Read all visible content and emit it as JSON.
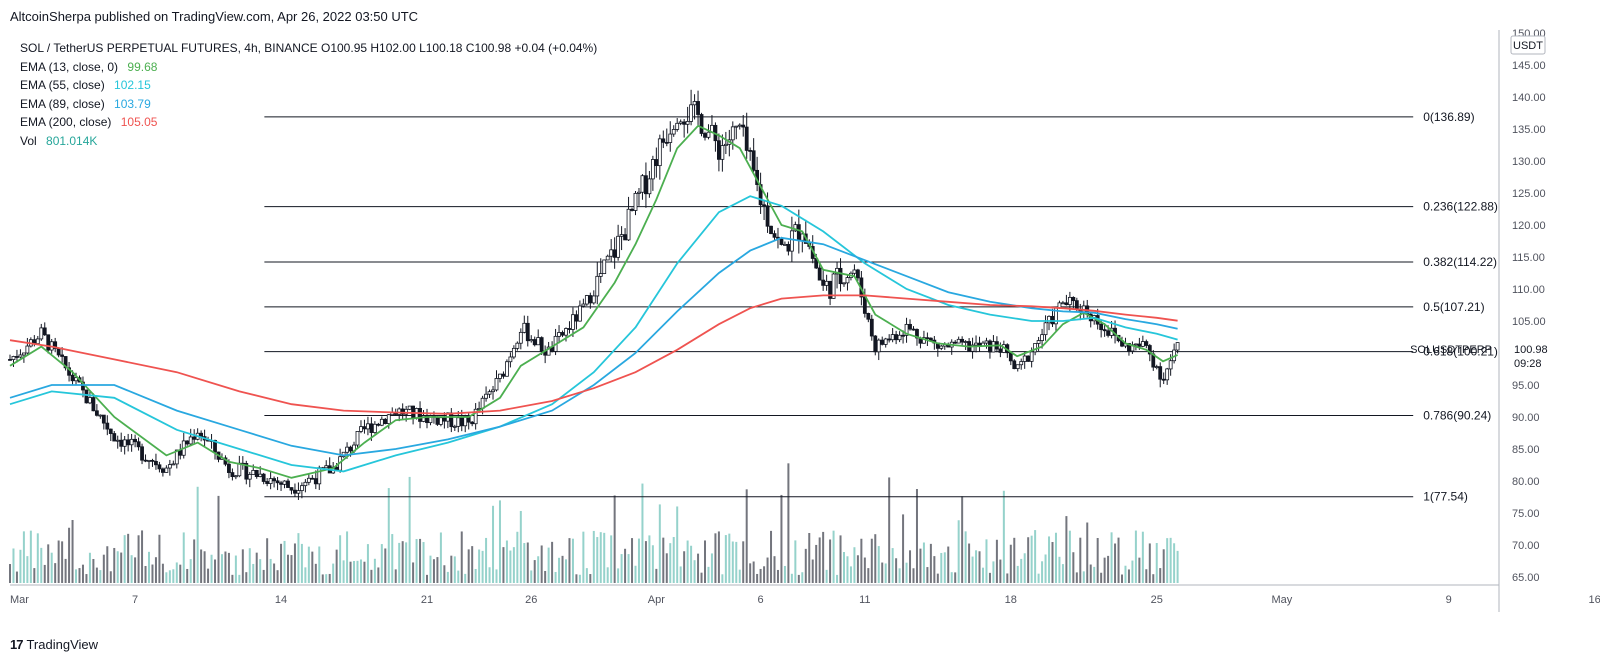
{
  "header": {
    "publisher": "AltcoinSherpa published on TradingView.com, Apr 26, 2022 03:50 UTC"
  },
  "legend": {
    "symbol": "SOL / TetherUS PERPETUAL FUTURES, 4h, BINANCE",
    "ohlc": "O100.95  H102.00  L100.18  C100.98  +0.04 (+0.04%)",
    "indicators": [
      {
        "name": "EMA (13, close, 0)",
        "value": "99.68",
        "color": "#4caf50"
      },
      {
        "name": "EMA (55, close)",
        "value": "102.15",
        "color": "#26c6da"
      },
      {
        "name": "EMA (89, close)",
        "value": "103.79",
        "color": "#29a8e0"
      },
      {
        "name": "EMA (200, close)",
        "value": "105.05",
        "color": "#ef5350"
      },
      {
        "name": "Vol",
        "value": "801.014K",
        "color": "#26a69a"
      }
    ]
  },
  "price_axis": {
    "currency": "USDT",
    "last_price": "100.98",
    "countdown": "09:28",
    "symbol_tag": "SOLUSDTPERP"
  },
  "footer": {
    "brand": "TradingView",
    "mark": "17"
  },
  "chart_data": {
    "type": "line",
    "title": "SOL / TetherUS PERPETUAL FUTURES, 4h, BINANCE",
    "ylim": [
      64,
      152
    ],
    "y_ticks": [
      65,
      70,
      75,
      80,
      85,
      90,
      95,
      100,
      105,
      110,
      115,
      120,
      125,
      130,
      135,
      140,
      145,
      150
    ],
    "x_ticks": [
      {
        "label": "Mar",
        "day": 0
      },
      {
        "label": "7",
        "day": 6
      },
      {
        "label": "14",
        "day": 13
      },
      {
        "label": "21",
        "day": 20
      },
      {
        "label": "26",
        "day": 25
      },
      {
        "label": "Apr",
        "day": 31
      },
      {
        "label": "6",
        "day": 36
      },
      {
        "label": "11",
        "day": 41
      },
      {
        "label": "18",
        "day": 48
      },
      {
        "label": "25",
        "day": 55
      },
      {
        "label": "May",
        "day": 61
      },
      {
        "label": "9",
        "day": 69
      },
      {
        "label": "16",
        "day": 76
      }
    ],
    "fib_levels": [
      {
        "ratio": "0",
        "price": 136.89,
        "label": "0(136.89)"
      },
      {
        "ratio": "0.236",
        "price": 122.88,
        "label": "0.236(122.88)"
      },
      {
        "ratio": "0.382",
        "price": 114.22,
        "label": "0.382(114.22)"
      },
      {
        "ratio": "0.5",
        "price": 107.21,
        "label": "0.5(107.21)"
      },
      {
        "ratio": "0.618",
        "price": 100.21,
        "label": "0.618(100.21)"
      },
      {
        "ratio": "0.786",
        "price": 90.24,
        "label": "0.786(90.24)"
      },
      {
        "ratio": "1",
        "price": 77.54,
        "label": "1(77.54)"
      }
    ],
    "fib_start_day": 12.2,
    "fib_end_day": 67.3,
    "price_path": [
      {
        "day": 0,
        "price": 99
      },
      {
        "day": 1.5,
        "price": 103
      },
      {
        "day": 3,
        "price": 96
      },
      {
        "day": 5,
        "price": 87
      },
      {
        "day": 7.5,
        "price": 82
      },
      {
        "day": 9,
        "price": 88
      },
      {
        "day": 10.5,
        "price": 82
      },
      {
        "day": 12,
        "price": 81
      },
      {
        "day": 13.5,
        "price": 79
      },
      {
        "day": 15.5,
        "price": 82
      },
      {
        "day": 17,
        "price": 88
      },
      {
        "day": 18.5,
        "price": 91
      },
      {
        "day": 20,
        "price": 90
      },
      {
        "day": 22,
        "price": 89
      },
      {
        "day": 23.5,
        "price": 96
      },
      {
        "day": 24.5,
        "price": 104
      },
      {
        "day": 25.8,
        "price": 100
      },
      {
        "day": 27.5,
        "price": 107
      },
      {
        "day": 29,
        "price": 116
      },
      {
        "day": 30,
        "price": 123
      },
      {
        "day": 31,
        "price": 131
      },
      {
        "day": 32,
        "price": 138
      },
      {
        "day": 33,
        "price": 137
      },
      {
        "day": 34,
        "price": 132
      },
      {
        "day": 35,
        "price": 135
      },
      {
        "day": 36,
        "price": 124
      },
      {
        "day": 37,
        "price": 116
      },
      {
        "day": 38,
        "price": 120
      },
      {
        "day": 39,
        "price": 110
      },
      {
        "day": 40.5,
        "price": 113
      },
      {
        "day": 41.5,
        "price": 101
      },
      {
        "day": 43,
        "price": 104
      },
      {
        "day": 44.5,
        "price": 101
      },
      {
        "day": 46,
        "price": 101
      },
      {
        "day": 47.5,
        "price": 101
      },
      {
        "day": 48.3,
        "price": 97
      },
      {
        "day": 49.5,
        "price": 103
      },
      {
        "day": 50.5,
        "price": 108
      },
      {
        "day": 51.5,
        "price": 107
      },
      {
        "day": 52.5,
        "price": 104
      },
      {
        "day": 53.5,
        "price": 101
      },
      {
        "day": 54.5,
        "price": 101
      },
      {
        "day": 55.3,
        "price": 96
      },
      {
        "day": 56,
        "price": 101
      }
    ],
    "series": [
      {
        "name": "EMA (13, close, 0)",
        "color": "#4caf50",
        "points": [
          [
            0,
            98
          ],
          [
            1.5,
            101
          ],
          [
            3,
            97
          ],
          [
            5,
            90
          ],
          [
            7.5,
            84
          ],
          [
            9,
            86
          ],
          [
            10.5,
            83
          ],
          [
            12,
            82
          ],
          [
            13.5,
            80.5
          ],
          [
            15.5,
            82
          ],
          [
            17,
            86
          ],
          [
            18.5,
            89.5
          ],
          [
            20,
            90
          ],
          [
            22,
            90
          ],
          [
            23.5,
            93
          ],
          [
            24.5,
            98
          ],
          [
            26,
            101
          ],
          [
            27.5,
            104
          ],
          [
            29,
            111
          ],
          [
            30,
            117
          ],
          [
            31,
            124
          ],
          [
            32,
            132
          ],
          [
            33,
            135.5
          ],
          [
            34,
            134
          ],
          [
            35,
            132
          ],
          [
            36,
            126
          ],
          [
            37,
            120
          ],
          [
            38,
            119
          ],
          [
            39,
            113
          ],
          [
            40.5,
            112
          ],
          [
            41.5,
            106
          ],
          [
            43,
            103
          ],
          [
            44.5,
            101.5
          ],
          [
            46,
            101
          ],
          [
            47.5,
            101.2
          ],
          [
            48.3,
            99.5
          ],
          [
            49.5,
            101
          ],
          [
            50.5,
            104.5
          ],
          [
            51.5,
            106.3
          ],
          [
            52.5,
            104.5
          ],
          [
            53.5,
            101.5
          ],
          [
            54.5,
            100.5
          ],
          [
            55.3,
            98.7
          ],
          [
            56,
            99.7
          ]
        ]
      },
      {
        "name": "EMA (55, close)",
        "color": "#26c6da",
        "points": [
          [
            0,
            92
          ],
          [
            2,
            94
          ],
          [
            5,
            93
          ],
          [
            8,
            88
          ],
          [
            11,
            85
          ],
          [
            13.5,
            82.5
          ],
          [
            16,
            81.5
          ],
          [
            18.5,
            84
          ],
          [
            21,
            86
          ],
          [
            23.5,
            88.5
          ],
          [
            26,
            92
          ],
          [
            28,
            97
          ],
          [
            30,
            104
          ],
          [
            32,
            114
          ],
          [
            34,
            122
          ],
          [
            35.5,
            124.5
          ],
          [
            37,
            123
          ],
          [
            39,
            119
          ],
          [
            41,
            114
          ],
          [
            43,
            110
          ],
          [
            45,
            107.5
          ],
          [
            47,
            106
          ],
          [
            49,
            105
          ],
          [
            50.5,
            105
          ],
          [
            52,
            105.5
          ],
          [
            53.5,
            104
          ],
          [
            55,
            103
          ],
          [
            56,
            102.1
          ]
        ]
      },
      {
        "name": "EMA (89, close)",
        "color": "#29a8e0",
        "points": [
          [
            0,
            93
          ],
          [
            2,
            95
          ],
          [
            5,
            95
          ],
          [
            8,
            91
          ],
          [
            11,
            88
          ],
          [
            13.5,
            85.5
          ],
          [
            16,
            84
          ],
          [
            18.5,
            85
          ],
          [
            21,
            86.5
          ],
          [
            23.5,
            88.5
          ],
          [
            26,
            91
          ],
          [
            28,
            95
          ],
          [
            30,
            100
          ],
          [
            32,
            106.5
          ],
          [
            34,
            112.5
          ],
          [
            35.5,
            116
          ],
          [
            37,
            118
          ],
          [
            39,
            117
          ],
          [
            41,
            114.5
          ],
          [
            43,
            112
          ],
          [
            45,
            109.5
          ],
          [
            47,
            108
          ],
          [
            49,
            107
          ],
          [
            50.5,
            106.5
          ],
          [
            52,
            106.3
          ],
          [
            53.5,
            105.3
          ],
          [
            55,
            104.5
          ],
          [
            56,
            103.8
          ]
        ]
      },
      {
        "name": "EMA (200, close)",
        "color": "#ef5350",
        "points": [
          [
            0,
            102
          ],
          [
            2,
            101
          ],
          [
            5,
            99
          ],
          [
            8,
            97
          ],
          [
            11,
            94
          ],
          [
            13.5,
            92
          ],
          [
            16,
            91
          ],
          [
            18.5,
            90.7
          ],
          [
            21,
            90.5
          ],
          [
            23.5,
            91
          ],
          [
            26,
            92.5
          ],
          [
            28,
            94.5
          ],
          [
            30,
            97
          ],
          [
            32,
            100.5
          ],
          [
            34,
            104.5
          ],
          [
            35.5,
            107
          ],
          [
            37,
            108.5
          ],
          [
            39,
            109
          ],
          [
            41,
            109
          ],
          [
            43,
            108.5
          ],
          [
            45,
            108
          ],
          [
            47,
            107.5
          ],
          [
            49,
            107.3
          ],
          [
            50.5,
            107
          ],
          [
            52,
            106.6
          ],
          [
            53.5,
            106
          ],
          [
            55,
            105.5
          ],
          [
            56,
            105.05
          ]
        ]
      }
    ]
  }
}
